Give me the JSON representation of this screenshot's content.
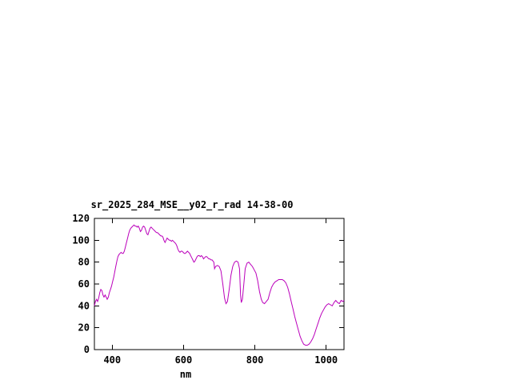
{
  "chart_data": {
    "type": "line",
    "title": "sr_2025_284_MSE__y02_r_rad 14-38-00",
    "xlabel": "nm",
    "ylabel": "",
    "xlim": [
      350,
      1050
    ],
    "ylim": [
      0,
      120
    ],
    "x_ticks": [
      400,
      600,
      800,
      1000
    ],
    "y_ticks": [
      0,
      20,
      40,
      60,
      80,
      100,
      120
    ],
    "grid": false,
    "legend": "none",
    "axis_color": "#000000",
    "background_color": "#ffffff",
    "series": [
      {
        "name": "sr_2025_284_MSE__y02_r_rad",
        "color": "#bb00bb",
        "points": [
          [
            350,
            40
          ],
          [
            353,
            44
          ],
          [
            356,
            46
          ],
          [
            359,
            44
          ],
          [
            362,
            47
          ],
          [
            365,
            52
          ],
          [
            368,
            55
          ],
          [
            371,
            54
          ],
          [
            374,
            50
          ],
          [
            377,
            48
          ],
          [
            380,
            50
          ],
          [
            383,
            48
          ],
          [
            386,
            46
          ],
          [
            389,
            48
          ],
          [
            392,
            52
          ],
          [
            395,
            55
          ],
          [
            398,
            58
          ],
          [
            401,
            62
          ],
          [
            404,
            66
          ],
          [
            407,
            71
          ],
          [
            410,
            76
          ],
          [
            413,
            81
          ],
          [
            416,
            85
          ],
          [
            419,
            87
          ],
          [
            422,
            88
          ],
          [
            425,
            89
          ],
          [
            428,
            88
          ],
          [
            431,
            88
          ],
          [
            434,
            90
          ],
          [
            437,
            94
          ],
          [
            440,
            98
          ],
          [
            443,
            102
          ],
          [
            446,
            106
          ],
          [
            449,
            109
          ],
          [
            452,
            111
          ],
          [
            455,
            112
          ],
          [
            458,
            113
          ],
          [
            461,
            114
          ],
          [
            464,
            113
          ],
          [
            467,
            113
          ],
          [
            470,
            112
          ],
          [
            473,
            113
          ],
          [
            476,
            111
          ],
          [
            479,
            108
          ],
          [
            482,
            109
          ],
          [
            485,
            112
          ],
          [
            488,
            113
          ],
          [
            491,
            112
          ],
          [
            494,
            109
          ],
          [
            497,
            106
          ],
          [
            500,
            105
          ],
          [
            503,
            108
          ],
          [
            506,
            111
          ],
          [
            509,
            112
          ],
          [
            512,
            111
          ],
          [
            515,
            110
          ],
          [
            518,
            109
          ],
          [
            521,
            108
          ],
          [
            524,
            107
          ],
          [
            527,
            107
          ],
          [
            530,
            106
          ],
          [
            533,
            105
          ],
          [
            536,
            104
          ],
          [
            539,
            104
          ],
          [
            542,
            103
          ],
          [
            545,
            100
          ],
          [
            548,
            98
          ],
          [
            551,
            100
          ],
          [
            554,
            102
          ],
          [
            557,
            101
          ],
          [
            560,
            100
          ],
          [
            563,
            100
          ],
          [
            566,
            99
          ],
          [
            569,
            100
          ],
          [
            572,
            99
          ],
          [
            575,
            98
          ],
          [
            578,
            97
          ],
          [
            581,
            95
          ],
          [
            584,
            92
          ],
          [
            587,
            90
          ],
          [
            590,
            89
          ],
          [
            593,
            90
          ],
          [
            596,
            90
          ],
          [
            599,
            89
          ],
          [
            602,
            88
          ],
          [
            605,
            88
          ],
          [
            608,
            89
          ],
          [
            611,
            90
          ],
          [
            614,
            89
          ],
          [
            617,
            88
          ],
          [
            620,
            86
          ],
          [
            623,
            84
          ],
          [
            626,
            82
          ],
          [
            629,
            80
          ],
          [
            632,
            81
          ],
          [
            635,
            83
          ],
          [
            638,
            85
          ],
          [
            641,
            86
          ],
          [
            644,
            86
          ],
          [
            647,
            85
          ],
          [
            650,
            86
          ],
          [
            653,
            85
          ],
          [
            656,
            83
          ],
          [
            659,
            84
          ],
          [
            662,
            85
          ],
          [
            665,
            85
          ],
          [
            668,
            84
          ],
          [
            671,
            83
          ],
          [
            674,
            83
          ],
          [
            677,
            82
          ],
          [
            680,
            82
          ],
          [
            685,
            80
          ],
          [
            687,
            74
          ],
          [
            690,
            76
          ],
          [
            695,
            77
          ],
          [
            700,
            76
          ],
          [
            705,
            72
          ],
          [
            710,
            60
          ],
          [
            715,
            47
          ],
          [
            719,
            42
          ],
          [
            723,
            44
          ],
          [
            728,
            55
          ],
          [
            733,
            68
          ],
          [
            738,
            76
          ],
          [
            743,
            80
          ],
          [
            748,
            81
          ],
          [
            753,
            80
          ],
          [
            757,
            74
          ],
          [
            760,
            50
          ],
          [
            762,
            43
          ],
          [
            765,
            46
          ],
          [
            769,
            60
          ],
          [
            773,
            74
          ],
          [
            778,
            79
          ],
          [
            783,
            80
          ],
          [
            788,
            78
          ],
          [
            793,
            76
          ],
          [
            798,
            73
          ],
          [
            803,
            70
          ],
          [
            808,
            63
          ],
          [
            813,
            53
          ],
          [
            818,
            46
          ],
          [
            822,
            43
          ],
          [
            827,
            42
          ],
          [
            832,
            44
          ],
          [
            837,
            46
          ],
          [
            842,
            52
          ],
          [
            847,
            57
          ],
          [
            852,
            60
          ],
          [
            857,
            62
          ],
          [
            862,
            63
          ],
          [
            867,
            64
          ],
          [
            872,
            64
          ],
          [
            877,
            64
          ],
          [
            882,
            63
          ],
          [
            887,
            61
          ],
          [
            892,
            57
          ],
          [
            897,
            51
          ],
          [
            902,
            44
          ],
          [
            907,
            37
          ],
          [
            912,
            30
          ],
          [
            917,
            24
          ],
          [
            922,
            18
          ],
          [
            927,
            12
          ],
          [
            932,
            8
          ],
          [
            937,
            5
          ],
          [
            942,
            4
          ],
          [
            947,
            4
          ],
          [
            952,
            5
          ],
          [
            957,
            7
          ],
          [
            962,
            10
          ],
          [
            967,
            14
          ],
          [
            972,
            19
          ],
          [
            977,
            24
          ],
          [
            982,
            29
          ],
          [
            987,
            33
          ],
          [
            992,
            36
          ],
          [
            997,
            39
          ],
          [
            1002,
            41
          ],
          [
            1007,
            42
          ],
          [
            1012,
            41
          ],
          [
            1017,
            40
          ],
          [
            1022,
            43
          ],
          [
            1027,
            45
          ],
          [
            1032,
            43
          ],
          [
            1037,
            42
          ],
          [
            1042,
            45
          ],
          [
            1047,
            44
          ],
          [
            1050,
            45
          ]
        ]
      }
    ]
  }
}
